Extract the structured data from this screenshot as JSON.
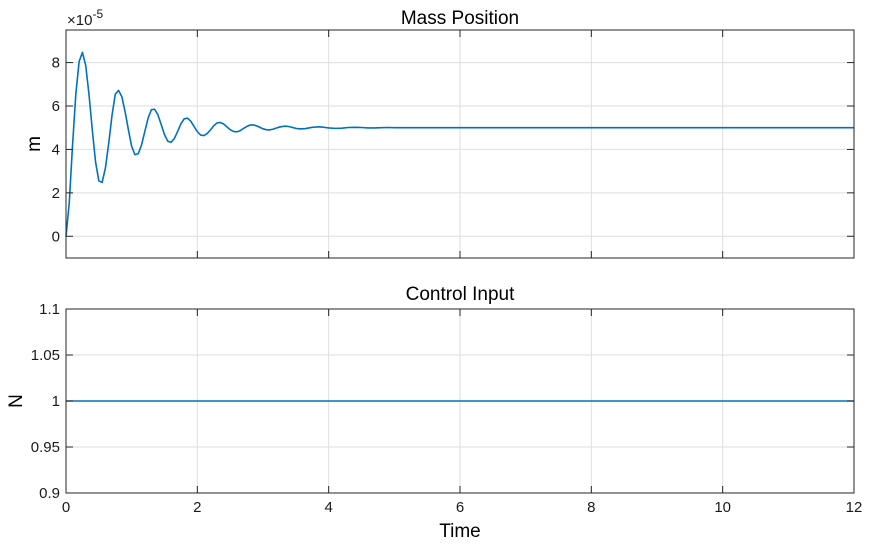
{
  "chart_data": [
    {
      "type": "line",
      "title": "Mass Position",
      "xlabel": "",
      "ylabel": "m",
      "xlim": [
        0,
        12
      ],
      "ylim": [
        -1e-05,
        9.5e-05
      ],
      "x_ticks": [
        0,
        2,
        4,
        6,
        8,
        10,
        12
      ],
      "x_tick_labels_shown": false,
      "y_ticks": [
        0,
        2,
        4,
        6,
        8
      ],
      "y_tick_labels": [
        "0",
        "2",
        "4",
        "6",
        "8"
      ],
      "y_exponent_label": "×10",
      "y_exponent": "-5",
      "grid": true,
      "line_color": "#0072BD",
      "series": [
        {
          "x": [
            0,
            0.05,
            0.1,
            0.15,
            0.2,
            0.25,
            0.3,
            0.35,
            0.4,
            0.45,
            0.5,
            0.55,
            0.6,
            0.65,
            0.7,
            0.75,
            0.8,
            0.85,
            0.9,
            0.95,
            1.0,
            1.05,
            1.1,
            1.15,
            1.2,
            1.25,
            1.3,
            1.35,
            1.4,
            1.45,
            1.5,
            1.55,
            1.6,
            1.65,
            1.7,
            1.75,
            1.8,
            1.85,
            1.9,
            1.95,
            2.0,
            2.05,
            2.1,
            2.15,
            2.2,
            2.25,
            2.3,
            2.35,
            2.4,
            2.45,
            2.5,
            2.55,
            2.6,
            2.65,
            2.7,
            2.75,
            2.8,
            2.85,
            2.9,
            2.95,
            3.0,
            3.05,
            3.1,
            3.15,
            3.2,
            3.25,
            3.3,
            3.35,
            3.4,
            3.45,
            3.5,
            3.55,
            3.6,
            3.65,
            3.7,
            3.75,
            3.8,
            3.85,
            3.9,
            3.95,
            4.0,
            4.1,
            4.2,
            4.3,
            4.4,
            4.5,
            4.6,
            4.7,
            4.8,
            4.9,
            5.0,
            5.2,
            5.4,
            5.6,
            5.8,
            6.0,
            6.2,
            6.4,
            6.6,
            6.8,
            7.0,
            7.5,
            8.0,
            8.5,
            9.0,
            9.5,
            10.0,
            10.5,
            11.0,
            11.5,
            12.0
          ],
          "y": [
            0.0,
            1.56e-05,
            4.21e-05,
            6.56e-05,
            8.05e-05,
            8.47e-05,
            7.87e-05,
            6.54e-05,
            4.91e-05,
            3.43e-05,
            2.55e-05,
            2.48e-05,
            3.14e-05,
            4.27e-05,
            5.55e-05,
            6.54e-05,
            6.72e-05,
            6.43e-05,
            5.74e-05,
            4.91e-05,
            4.14e-05,
            3.76e-05,
            3.8e-05,
            4.2e-05,
            4.82e-05,
            5.44e-05,
            5.83e-05,
            5.85e-05,
            5.59e-05,
            5.14e-05,
            4.68e-05,
            4.38e-05,
            4.33e-05,
            4.5e-05,
            4.83e-05,
            5.18e-05,
            5.41e-05,
            5.44e-05,
            5.3e-05,
            5.06e-05,
            4.82e-05,
            4.66e-05,
            4.64e-05,
            4.73e-05,
            4.9e-05,
            5.09e-05,
            5.22e-05,
            5.24e-05,
            5.17e-05,
            5.04e-05,
            4.91e-05,
            4.83e-05,
            4.81e-05,
            4.86e-05,
            4.96e-05,
            5.05e-05,
            5.12e-05,
            5.13e-05,
            5.09e-05,
            5.02e-05,
            4.95e-05,
            4.91e-05,
            4.9e-05,
            4.93e-05,
            4.98e-05,
            5.03e-05,
            5.06e-05,
            5.07e-05,
            5.05e-05,
            5.01e-05,
            4.97e-05,
            4.95e-05,
            4.95e-05,
            4.96e-05,
            4.99e-05,
            5.02e-05,
            5.03e-05,
            5.04e-05,
            5.03e-05,
            5.01e-05,
            4.99e-05,
            4.97e-05,
            4.98e-05,
            5.01e-05,
            5.02e-05,
            5.01e-05,
            4.99e-05,
            4.99e-05,
            5e-05,
            5.01e-05,
            5e-05,
            5e-05,
            5e-05,
            5e-05,
            5e-05,
            5e-05,
            5e-05,
            5e-05,
            5e-05,
            5e-05,
            5e-05,
            5e-05,
            5e-05,
            5e-05,
            5e-05,
            5e-05,
            5e-05,
            5e-05,
            5e-05,
            5e-05,
            5e-05
          ]
        }
      ]
    },
    {
      "type": "line",
      "title": "Control Input",
      "xlabel": "Time",
      "ylabel": "N",
      "xlim": [
        0,
        12
      ],
      "ylim": [
        0.9,
        1.1
      ],
      "x_ticks": [
        0,
        2,
        4,
        6,
        8,
        10,
        12
      ],
      "x_tick_labels": [
        "0",
        "2",
        "4",
        "6",
        "8",
        "10",
        "12"
      ],
      "x_tick_labels_shown": true,
      "y_ticks": [
        0.9,
        0.95,
        1,
        1.05,
        1.1
      ],
      "y_tick_labels": [
        "0.9",
        "0.95",
        "1",
        "1.05",
        "1.1"
      ],
      "grid": true,
      "line_color": "#0072BD",
      "series": [
        {
          "x": [
            0,
            12
          ],
          "y": [
            1,
            1
          ]
        }
      ]
    }
  ]
}
